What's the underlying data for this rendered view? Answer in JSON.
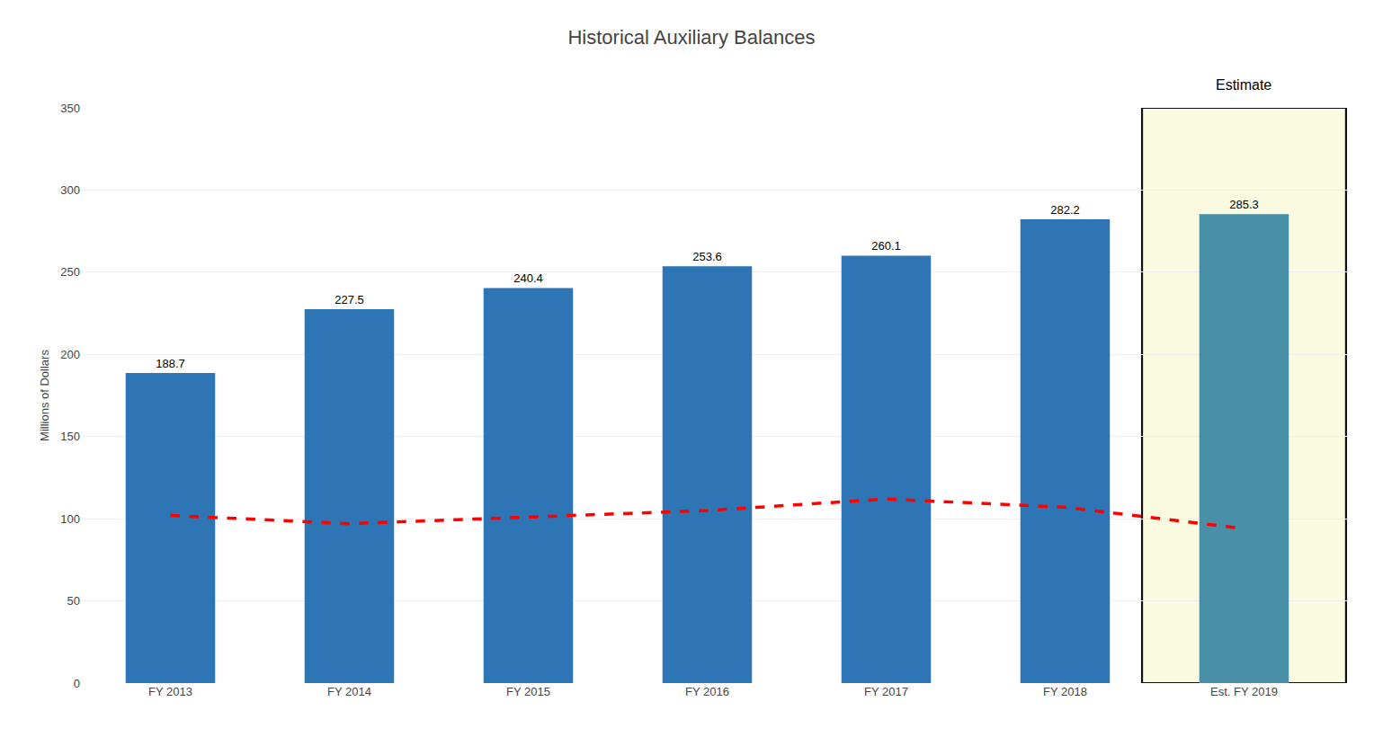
{
  "chart_data": {
    "type": "bar",
    "title": "Historical Auxiliary Balances",
    "ylabel": "Millions of Dollars",
    "categories": [
      "FY 2013",
      "FY 2014",
      "FY 2015",
      "FY 2016",
      "FY 2017",
      "FY 2018",
      "Est. FY 2019"
    ],
    "series": [
      {
        "type": "bar",
        "values": [
          188.7,
          227.5,
          240.4,
          253.6,
          260.1,
          282.2,
          285.3
        ],
        "colors": [
          "#2E75B6",
          "#2E75B6",
          "#2E75B6",
          "#2E75B6",
          "#2E75B6",
          "#2E75B6",
          "#4A8FA8"
        ]
      },
      {
        "type": "line",
        "values": [
          102,
          97,
          101,
          105,
          112,
          107,
          94
        ],
        "color": "#FF0000",
        "line_style": "dashed"
      }
    ],
    "data_labels": true,
    "annotations": [
      {
        "text": "Estimate",
        "x": "Est. FY 2019",
        "color": "#FAFAE0"
      }
    ],
    "ylim": [
      0,
      350
    ],
    "yticks": [
      0,
      50,
      100,
      150,
      200,
      250,
      300,
      350
    ],
    "grid": true
  }
}
